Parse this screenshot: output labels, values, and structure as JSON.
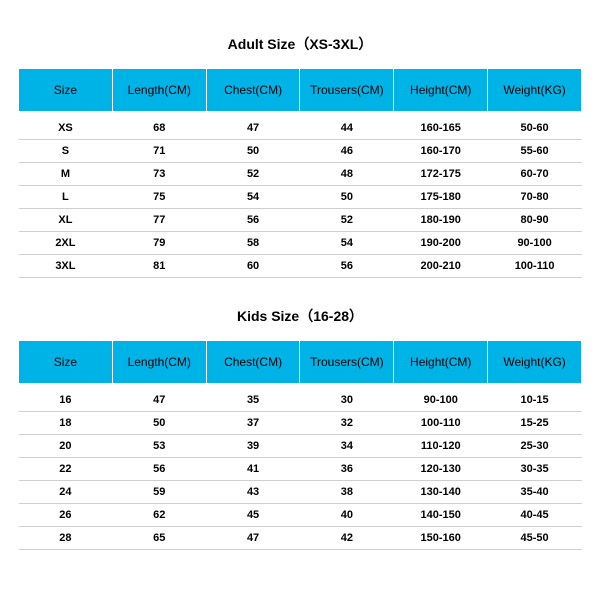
{
  "adult": {
    "title": "Adult Size（XS-3XL）",
    "columns": [
      "Size",
      "Length(CM)",
      "Chest(CM)",
      "Trousers(CM)",
      "Height(CM)",
      "Weight(KG)"
    ],
    "rows": [
      [
        "XS",
        "68",
        "47",
        "44",
        "160-165",
        "50-60"
      ],
      [
        "S",
        "71",
        "50",
        "46",
        "160-170",
        "55-60"
      ],
      [
        "M",
        "73",
        "52",
        "48",
        "172-175",
        "60-70"
      ],
      [
        "L",
        "75",
        "54",
        "50",
        "175-180",
        "70-80"
      ],
      [
        "XL",
        "77",
        "56",
        "52",
        "180-190",
        "80-90"
      ],
      [
        "2XL",
        "79",
        "58",
        "54",
        "190-200",
        "90-100"
      ],
      [
        "3XL",
        "81",
        "60",
        "56",
        "200-210",
        "100-110"
      ]
    ]
  },
  "kids": {
    "title": "Kids Size（16-28）",
    "columns": [
      "Size",
      "Length(CM)",
      "Chest(CM)",
      "Trousers(CM)",
      "Height(CM)",
      "Weight(KG)"
    ],
    "rows": [
      [
        "16",
        "47",
        "35",
        "30",
        "90-100",
        "10-15"
      ],
      [
        "18",
        "50",
        "37",
        "32",
        "100-110",
        "15-25"
      ],
      [
        "20",
        "53",
        "39",
        "34",
        "110-120",
        "25-30"
      ],
      [
        "22",
        "56",
        "41",
        "36",
        "120-130",
        "30-35"
      ],
      [
        "24",
        "59",
        "43",
        "38",
        "130-140",
        "35-40"
      ],
      [
        "26",
        "62",
        "45",
        "40",
        "140-150",
        "40-45"
      ],
      [
        "28",
        "65",
        "47",
        "42",
        "150-160",
        "45-50"
      ]
    ]
  },
  "style": {
    "header_bg": "#00b3e6",
    "row_border": "#cfcfcf",
    "font_title": 14,
    "font_header": 12,
    "font_cell": 11
  }
}
